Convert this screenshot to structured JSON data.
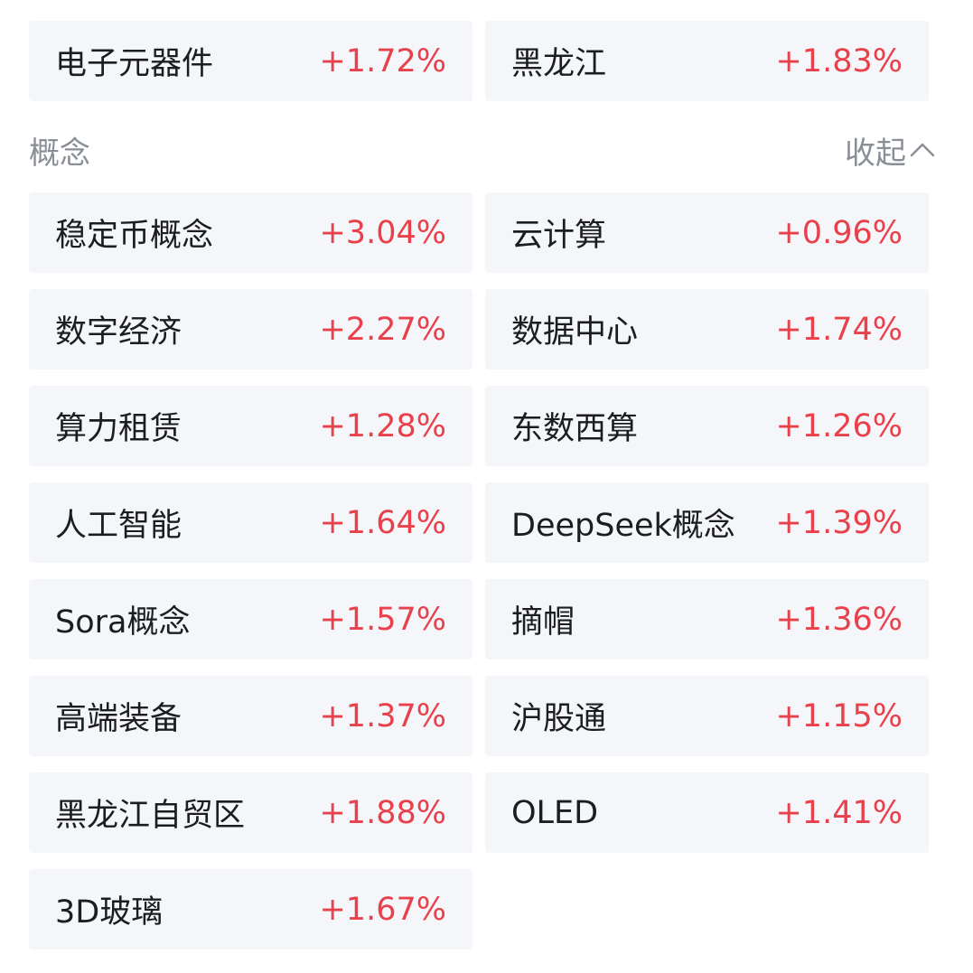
{
  "top_items": [
    {
      "name": "电子元器件",
      "change": "+1.72%"
    },
    {
      "name": "黑龙江",
      "change": "+1.83%"
    }
  ],
  "concept_section": {
    "title": "概念",
    "collapse_label": "收起",
    "collapse_icon": "chevron-up-icon"
  },
  "concepts": [
    {
      "name": "稳定币概念",
      "change": "+3.04%"
    },
    {
      "name": "云计算",
      "change": "+0.96%"
    },
    {
      "name": "数字经济",
      "change": "+2.27%"
    },
    {
      "name": "数据中心",
      "change": "+1.74%"
    },
    {
      "name": "算力租赁",
      "change": "+1.28%"
    },
    {
      "name": "东数西算",
      "change": "+1.26%"
    },
    {
      "name": "人工智能",
      "change": "+1.64%"
    },
    {
      "name": "DeepSeek概念",
      "change": "+1.39%"
    },
    {
      "name": "Sora概念",
      "change": "+1.57%"
    },
    {
      "name": "摘帽",
      "change": "+1.36%"
    },
    {
      "name": "高端装备",
      "change": "+1.37%"
    },
    {
      "name": "沪股通",
      "change": "+1.15%"
    },
    {
      "name": "黑龙江自贸区",
      "change": "+1.88%"
    },
    {
      "name": "OLED",
      "change": "+1.41%"
    },
    {
      "name": "3D玻璃",
      "change": "+1.67%"
    }
  ],
  "colors": {
    "positive": "#e8414c",
    "card_bg": "#f5f6f9",
    "muted_text": "#8a8e96",
    "primary_text": "#1c1d21"
  }
}
